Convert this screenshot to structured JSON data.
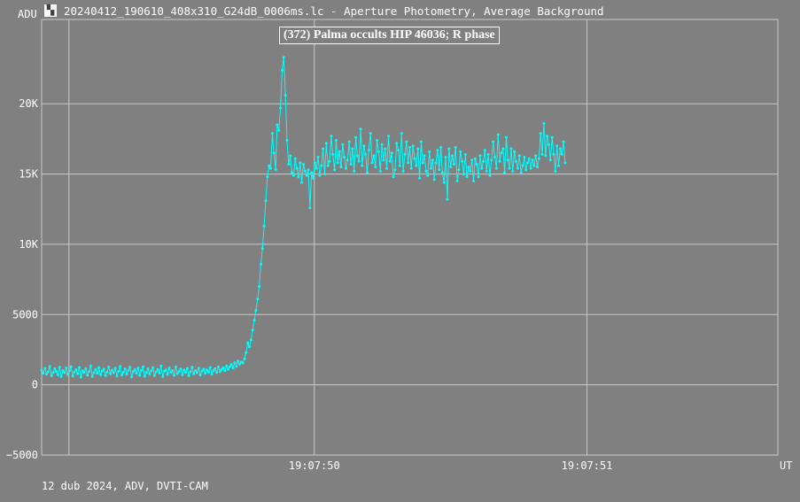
{
  "window": {
    "title": "20240412_190610_408x310_G24dB_0006ms.lc - Aperture Photometry, Average Background",
    "icon": "lightcurve-app-icon"
  },
  "footer": {
    "info": "12 dub 2024, ADV, DVTI-CAM"
  },
  "colors": {
    "background": "#808080",
    "grid": "#c8c8c8",
    "series": "#00ffff",
    "text": "#ffffff"
  },
  "chart_data": {
    "type": "line",
    "title": "(372) Palma occults HIP 46036; R phase",
    "ylabel": "ADU",
    "xlabel": "UT",
    "ylim": [
      -5000,
      26000
    ],
    "xlim": [
      49.0,
      51.7
    ],
    "x_ticks": [
      {
        "value": 50.0,
        "label": "19:07:50"
      },
      {
        "value": 51.0,
        "label": "19:07:51"
      }
    ],
    "y_ticks": [
      {
        "value": -5000,
        "label": "−5000"
      },
      {
        "value": 0,
        "label": "0"
      },
      {
        "value": 5000,
        "label": "5000"
      },
      {
        "value": 10000,
        "label": "10K"
      },
      {
        "value": 15000,
        "label": "15K"
      },
      {
        "value": 20000,
        "label": "20K"
      }
    ],
    "grid": true,
    "series": [
      {
        "x_start": 49.0,
        "x_step": 0.006,
        "values": [
          1050,
          820,
          1180,
          760,
          920,
          1320,
          640,
          880,
          1150,
          950,
          700,
          1250,
          580,
          1020,
          860,
          1200,
          740,
          990,
          1300,
          620,
          910,
          1080,
          770,
          1240,
          540,
          1000,
          880,
          1160,
          690,
          950,
          1350,
          600,
          870,
          1090,
          810,
          1230,
          720,
          980,
          1120,
          650,
          900,
          1270,
          780,
          1040,
          860,
          1190,
          630,
          960,
          1310,
          700,
          890,
          1140,
          760,
          1020,
          1260,
          560,
          940,
          1080,
          820,
          1190,
          680,
          1010,
          1290,
          610,
          880,
          1150,
          770,
          990,
          1230,
          660,
          920,
          1100,
          830,
          1340,
          590,
          970,
          1060,
          740,
          1200,
          870,
          1010,
          680,
          1280,
          800,
          950,
          1130,
          720,
          1050,
          890,
          1170,
          640,
          930,
          1250,
          780,
          1010,
          860,
          1190,
          700,
          980,
          1120,
          820,
          1060,
          910,
          1230,
          750,
          1000,
          1150,
          870,
          1290,
          940,
          1080,
          1210,
          990,
          1350,
          1100,
          1280,
          1450,
          1200,
          1580,
          1320,
          1700,
          1480,
          1620,
          1550,
          1850,
          2300,
          3000,
          2700,
          3200,
          3900,
          4600,
          5300,
          6100,
          7000,
          8600,
          9700,
          11300,
          13100,
          14800,
          15600,
          15400,
          17900,
          16500,
          15300,
          18500,
          18100,
          19700,
          22400,
          23300,
          20600,
          17400,
          15700,
          16300,
          15100,
          14900,
          16100,
          15400,
          14800,
          15800,
          14400,
          15700,
          15200,
          14900,
          15300,
          12600,
          15100,
          14700,
          15800,
          15400,
          16200,
          14900,
          15600,
          16800,
          15000,
          17200,
          15600,
          15900,
          17700,
          16400,
          15300,
          17400,
          15800,
          16600,
          15500,
          17100,
          16200,
          15400,
          16000,
          17300,
          15700,
          16800,
          15200,
          17600,
          16300,
          15900,
          18200,
          15600,
          17000,
          16400,
          15100,
          16700,
          17900,
          15800,
          16300,
          15500,
          17400,
          16600,
          15200,
          17100,
          16000,
          16800,
          15400,
          17700,
          15900,
          16500,
          14800,
          15300,
          17200,
          16700,
          15600,
          17900,
          15200,
          16400,
          17300,
          15800,
          16900,
          15400,
          17000,
          16100,
          15600,
          16800,
          14700,
          17300,
          15800,
          16300,
          15200,
          14900,
          16600,
          15400,
          16000,
          14600,
          15800,
          16700,
          15300,
          16900,
          15100,
          14400,
          16200,
          13200,
          16800,
          15500,
          16300,
          15700,
          16900,
          14500,
          15300,
          16600,
          15900,
          15000,
          16400,
          14800,
          15500,
          15200,
          16000,
          14500,
          16100,
          15700,
          14800,
          16300,
          15400,
          15900,
          16700,
          15200,
          16400,
          14900,
          16000,
          17300,
          16200,
          15400,
          17800,
          15900,
          16500,
          16800,
          15100,
          17600,
          16000,
          15400,
          16800,
          15200,
          16600,
          15900,
          15400,
          16300,
          15100,
          15600,
          16200,
          15300,
          15800,
          16100,
          15400,
          16000,
          15600,
          16300,
          15500,
          16100,
          17900,
          16400,
          18600,
          16300,
          17700,
          17100,
          16000,
          17600,
          16400,
          15200,
          17000,
          15600,
          16800,
          16400,
          17300,
          15800
        ]
      }
    ]
  }
}
